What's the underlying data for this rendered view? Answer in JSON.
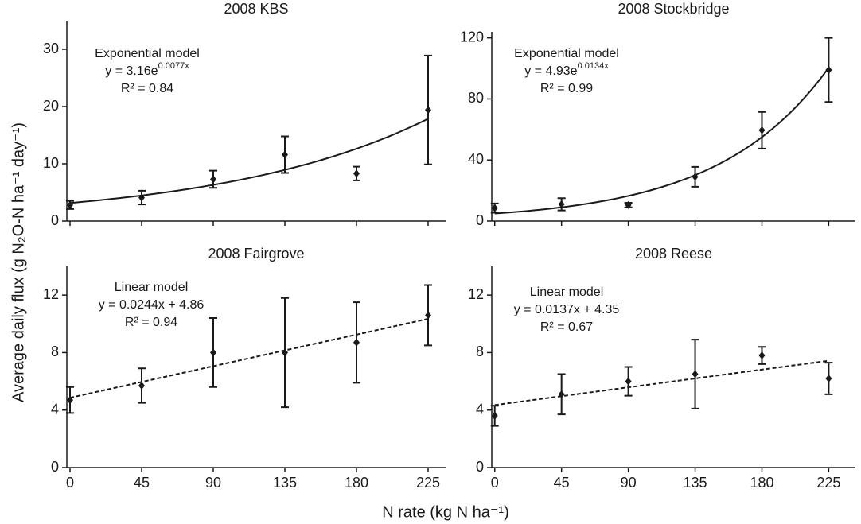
{
  "y_axis_label": "Average daily flux (g N₂O-N ha⁻¹ day⁻¹)",
  "x_axis_label": "N rate (kg N ha⁻¹)",
  "chart_data": [
    {
      "type": "scatter",
      "title": "2008 KBS",
      "x": [
        0,
        45,
        90,
        135,
        180,
        225
      ],
      "values": [
        2.8,
        4.1,
        7.3,
        11.6,
        8.3,
        19.4
      ],
      "errors": [
        0.7,
        1.2,
        1.5,
        3.2,
        1.2,
        9.5
      ],
      "xlim": [
        -2,
        236
      ],
      "ylim": [
        0,
        35
      ],
      "xticks": [
        0,
        45,
        90,
        135,
        180,
        225
      ],
      "yticks": [
        0,
        10,
        20,
        30
      ],
      "show_xtick_labels": false,
      "model_name": "Exponential model",
      "equation": "y = 3.16e",
      "equation_exponent": "0.0077x",
      "r_squared": "R² = 0.84",
      "fit": {
        "kind": "exponential",
        "a": 3.16,
        "b": 0.0077
      },
      "color": "#1a1a1a"
    },
    {
      "type": "scatter",
      "title": "2008 Stockbridge",
      "x": [
        0,
        45,
        90,
        135,
        180,
        225
      ],
      "values": [
        8.5,
        11,
        10.5,
        29,
        59.5,
        99
      ],
      "errors": [
        3,
        4,
        1.5,
        6.5,
        12,
        21
      ],
      "xlim": [
        -2,
        243
      ],
      "ylim": [
        0,
        124
      ],
      "xticks": [
        0,
        45,
        90,
        135,
        180,
        225
      ],
      "yticks": [
        0,
        40,
        80,
        120
      ],
      "show_xtick_labels": false,
      "model_name": "Exponential model",
      "equation": "y = 4.93e",
      "equation_exponent": "0.0134x",
      "r_squared": "R² = 0.99",
      "fit": {
        "kind": "exponential",
        "a": 4.93,
        "b": 0.0134
      },
      "color": "#1a1a1a"
    },
    {
      "type": "scatter",
      "title": "2008 Fairgrove",
      "x": [
        0,
        45,
        90,
        135,
        180,
        225
      ],
      "values": [
        4.7,
        5.7,
        8.0,
        8.0,
        8.7,
        10.6
      ],
      "errors": [
        0.9,
        1.2,
        2.4,
        3.8,
        2.8,
        2.1
      ],
      "xlim": [
        -2,
        236
      ],
      "ylim": [
        0,
        14
      ],
      "xticks": [
        0,
        45,
        90,
        135,
        180,
        225
      ],
      "yticks": [
        0,
        4,
        8,
        12
      ],
      "show_xtick_labels": true,
      "model_name": "Linear model",
      "equation": "y = 0.0244x + 4.86",
      "r_squared": "R² = 0.94",
      "fit": {
        "kind": "linear",
        "a": 4.86,
        "b": 0.0244
      },
      "color": "#1a1a1a"
    },
    {
      "type": "scatter",
      "title": "2008 Reese",
      "x": [
        0,
        45,
        90,
        135,
        180,
        225
      ],
      "values": [
        3.6,
        5.1,
        6.0,
        6.5,
        7.8,
        6.2
      ],
      "errors": [
        0.7,
        1.4,
        1.0,
        2.4,
        0.6,
        1.1
      ],
      "xlim": [
        -2,
        243
      ],
      "ylim": [
        0,
        14
      ],
      "xticks": [
        0,
        45,
        90,
        135,
        180,
        225
      ],
      "yticks": [
        0,
        4,
        8,
        12
      ],
      "show_xtick_labels": true,
      "model_name": "Linear model",
      "equation": "y = 0.0137x + 4.35",
      "r_squared": "R² = 0.67",
      "fit": {
        "kind": "linear",
        "a": 4.35,
        "b": 0.0137
      },
      "color": "#1a1a1a"
    }
  ]
}
